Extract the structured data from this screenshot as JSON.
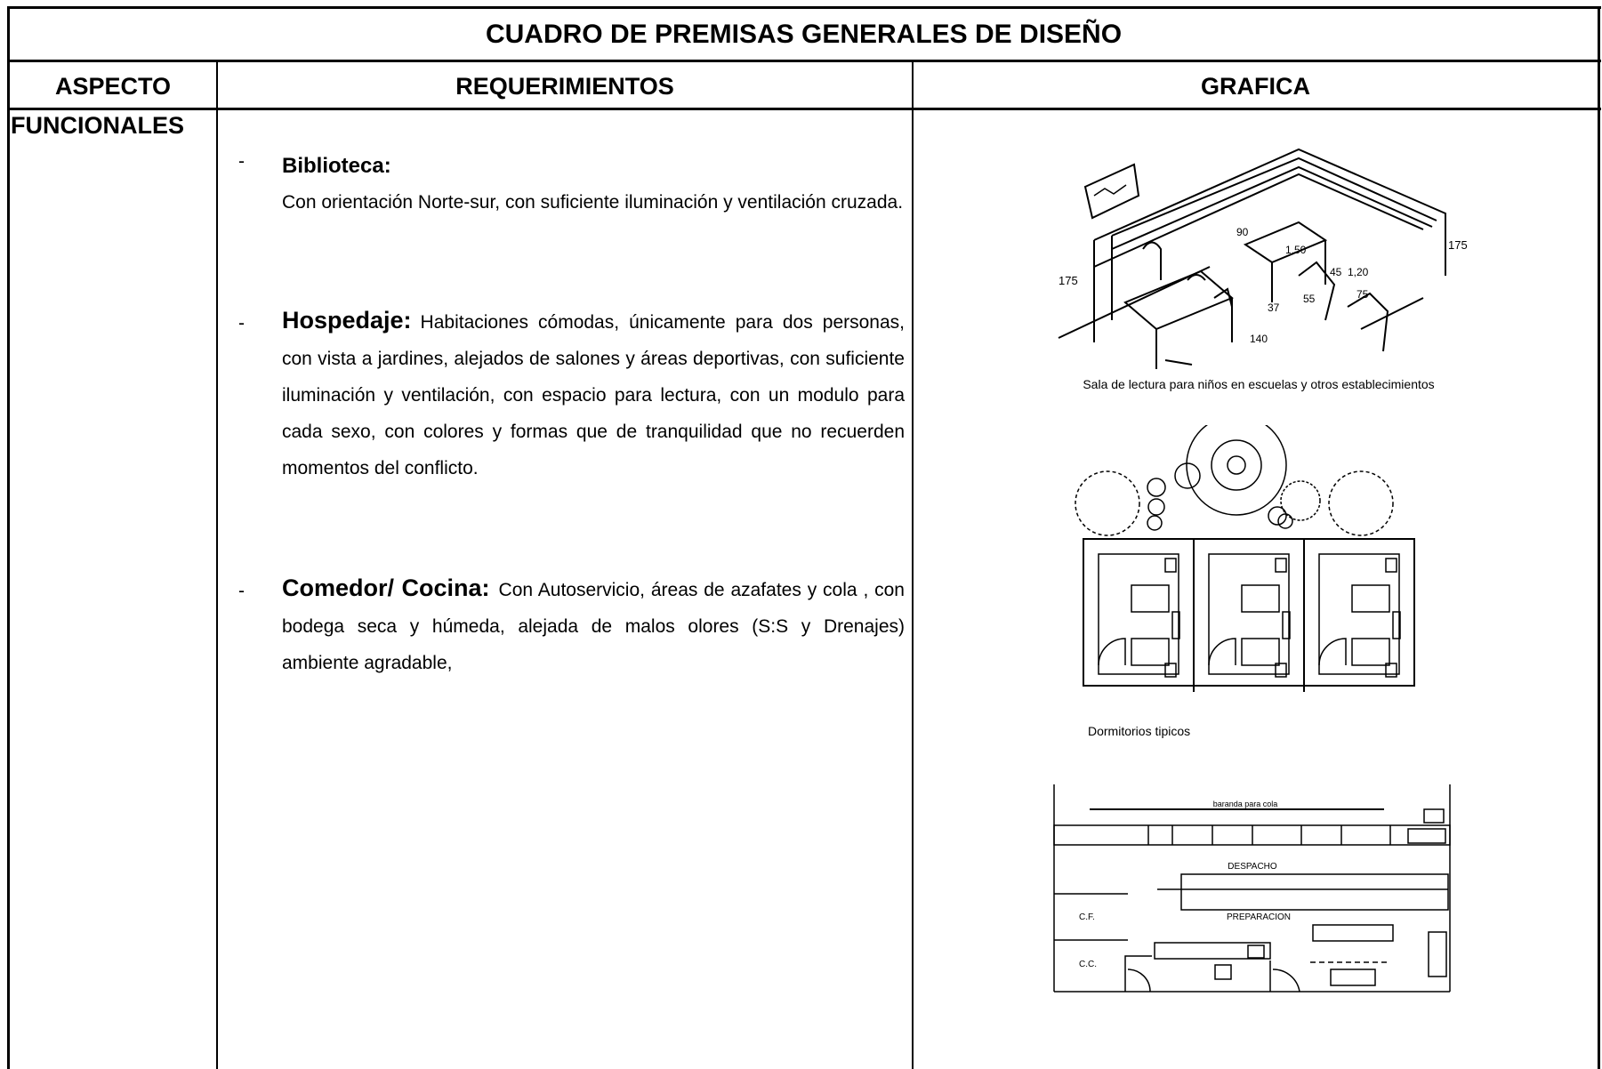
{
  "title": "CUADRO DE PREMISAS GENERALES DE DISEÑO",
  "headers": [
    "ASPECTO",
    "REQUERIMIENTOS",
    "GRAFICA"
  ],
  "rows": [
    {
      "aspect": "FUNCIONALES",
      "requirements": [
        {
          "heading": "Biblioteca:",
          "text": "Con orientación Norte-sur, con suficiente iluminación y ventilación cruzada."
        },
        {
          "heading": "Hospedaje:",
          "text": "Habitaciones cómodas, únicamente para dos personas, con vista a jardines, alejados de salones y áreas deportivas, con suficiente iluminación y ventilación, con espacio para lectura, con un modulo para cada sexo, con colores y formas que de tranquilidad que no recuerden momentos del conflicto."
        },
        {
          "heading": "Comedor/ Cocina:",
          "text": "Con Autoservicio, áreas de azafates y cola , con bodega seca y húmeda, alejada de malos olores (S:S y Drenajes) ambiente agradable,"
        }
      ],
      "graphics": [
        {
          "caption": "Sala de lectura para niños en escuelas y otros establecimientos",
          "labels": [
            "175",
            "175",
            "90",
            "1,50",
            "45",
            "1,20",
            "75",
            "55",
            "37",
            "140"
          ]
        },
        {
          "caption": "Dormitorios tipicos"
        },
        {
          "labels": [
            "baranda para cola",
            "DESPACHO",
            "PREPARACION",
            "C.F.",
            "C.C."
          ]
        }
      ]
    }
  ]
}
